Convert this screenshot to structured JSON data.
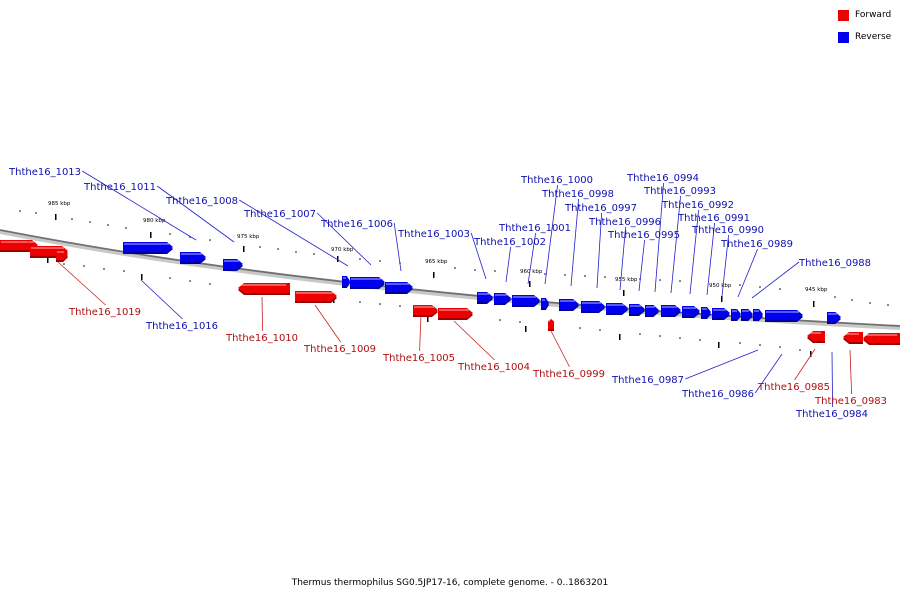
{
  "caption": "Thermus thermophilus SG0.5JP17-16, complete genome. - 0..1863201",
  "legend": [
    {
      "label": "Forward",
      "color": "#ee0000"
    },
    {
      "label": "Reverse",
      "color": "#0000ee"
    }
  ],
  "colors": {
    "forward": "#ee0000",
    "forward_dark": "#9a0000",
    "reverse": "#0000ee",
    "reverse_dark": "#00009a",
    "backbone": "#808080",
    "leader_reverse": "#2020cc",
    "leader_forward": "#cc2020",
    "label_reverse": "#1010b0",
    "label_forward": "#b01010"
  },
  "scale_ticks": [
    {
      "label": "985 kbp"
    },
    {
      "label": "980 kbp"
    },
    {
      "label": "975 kbp"
    },
    {
      "label": "970 kbp"
    },
    {
      "label": "965 kbp"
    },
    {
      "label": "960 kbp"
    },
    {
      "label": "955 kbp"
    },
    {
      "label": "950 kbp"
    },
    {
      "label": "945 kbp"
    }
  ],
  "genes": [
    {
      "name": "Ththe16_1019",
      "strand": "forward"
    },
    {
      "name": "Ththe16_1016",
      "strand": "reverse"
    },
    {
      "name": "Ththe16_1013",
      "strand": "reverse"
    },
    {
      "name": "Ththe16_1011",
      "strand": "reverse"
    },
    {
      "name": "Ththe16_1010",
      "strand": "forward"
    },
    {
      "name": "Ththe16_1009",
      "strand": "forward"
    },
    {
      "name": "Ththe16_1008",
      "strand": "reverse"
    },
    {
      "name": "Ththe16_1007",
      "strand": "reverse"
    },
    {
      "name": "Ththe16_1006",
      "strand": "reverse"
    },
    {
      "name": "Ththe16_1005",
      "strand": "forward"
    },
    {
      "name": "Ththe16_1004",
      "strand": "forward"
    },
    {
      "name": "Ththe16_1003",
      "strand": "reverse"
    },
    {
      "name": "Ththe16_1002",
      "strand": "reverse"
    },
    {
      "name": "Ththe16_1001",
      "strand": "reverse"
    },
    {
      "name": "Ththe16_1000",
      "strand": "reverse"
    },
    {
      "name": "Ththe16_0999",
      "strand": "forward"
    },
    {
      "name": "Ththe16_0998",
      "strand": "reverse"
    },
    {
      "name": "Ththe16_0997",
      "strand": "reverse"
    },
    {
      "name": "Ththe16_0996",
      "strand": "reverse"
    },
    {
      "name": "Ththe16_0995",
      "strand": "reverse"
    },
    {
      "name": "Ththe16_0994",
      "strand": "reverse"
    },
    {
      "name": "Ththe16_0993",
      "strand": "reverse"
    },
    {
      "name": "Ththe16_0992",
      "strand": "reverse"
    },
    {
      "name": "Ththe16_0991",
      "strand": "reverse"
    },
    {
      "name": "Ththe16_0990",
      "strand": "reverse"
    },
    {
      "name": "Ththe16_0989",
      "strand": "reverse"
    },
    {
      "name": "Ththe16_0988",
      "strand": "reverse"
    },
    {
      "name": "Ththe16_0987",
      "strand": "reverse"
    },
    {
      "name": "Ththe16_0986",
      "strand": "reverse"
    },
    {
      "name": "Ththe16_0985",
      "strand": "forward"
    },
    {
      "name": "Ththe16_0984",
      "strand": "reverse"
    },
    {
      "name": "Ththe16_0983",
      "strand": "forward"
    }
  ]
}
